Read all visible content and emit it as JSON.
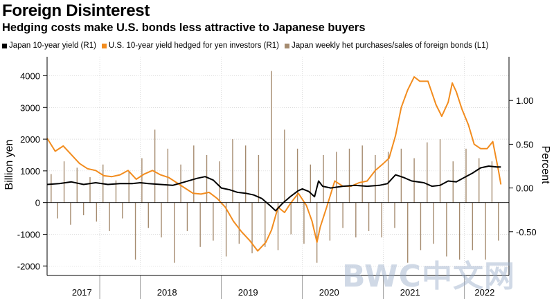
{
  "header": {
    "title": "Foreign Disinterest",
    "subtitle": "Hedging costs make U.S. bonds less attractive to Japanese buyers"
  },
  "watermark": "BWC中文网",
  "colors": {
    "japan_yield": "#000000",
    "us_hedged": "#f28c1e",
    "purchases": "#a58b6f",
    "grid": "#c8c8c8"
  },
  "chart_data": {
    "type": "line",
    "title": "Foreign Disinterest",
    "subtitle": "Hedging costs make U.S. bonds less attractive to Japanese buyers",
    "ylabel_left": "Billion yen",
    "ylabel_right": "Percent",
    "ylim_left": [
      -2300,
      4600
    ],
    "ylim_right": [
      -1.0,
      1.5
    ],
    "x_range": [
      2016.85,
      2022.55
    ],
    "yticks_left": [
      4000,
      3000,
      2000,
      1000,
      0,
      -1000,
      -2000
    ],
    "yticks_right": [
      1.0,
      0.5,
      0.0,
      -0.5
    ],
    "ytick_labels_left": [
      "4000",
      "3000",
      "2000",
      "1000",
      "0",
      "-1000",
      "-2000"
    ],
    "ytick_labels_right": [
      "1.00",
      "0.50",
      "0.00",
      "-0.50"
    ],
    "xticks": [
      {
        "label": "2017",
        "mid": 2017.28
      },
      {
        "label": "2018",
        "mid": 2018.33
      },
      {
        "label": "2019",
        "mid": 2019.33
      },
      {
        "label": "2020",
        "mid": 2020.33
      },
      {
        "label": "2021",
        "mid": 2021.33
      },
      {
        "label": "2022",
        "mid": 2022.25
      }
    ],
    "year_boundaries": [
      2017.5,
      2018.0,
      2019.0,
      2020.0,
      2021.0,
      2022.0
    ],
    "grid": true,
    "series": [
      {
        "name": "Japan 10-year yield (R1)",
        "axis": "right",
        "kind": "line",
        "x": [
          2016.85,
          2017.0,
          2017.15,
          2017.3,
          2017.45,
          2017.6,
          2017.75,
          2017.9,
          2018.0,
          2018.1,
          2018.25,
          2018.4,
          2018.55,
          2018.7,
          2018.8,
          2018.9,
          2019.0,
          2019.1,
          2019.2,
          2019.3,
          2019.4,
          2019.5,
          2019.6,
          2019.67,
          2019.75,
          2019.85,
          2019.95,
          2020.0,
          2020.08,
          2020.15,
          2020.2,
          2020.25,
          2020.35,
          2020.5,
          2020.65,
          2020.8,
          2020.95,
          2021.05,
          2021.15,
          2021.25,
          2021.35,
          2021.5,
          2021.6,
          2021.7,
          2021.8,
          2021.9,
          2022.0,
          2022.1,
          2022.2,
          2022.3,
          2022.4,
          2022.45
        ],
        "y": [
          0.04,
          0.05,
          0.07,
          0.04,
          0.06,
          0.04,
          0.05,
          0.05,
          0.06,
          0.05,
          0.04,
          0.03,
          0.07,
          0.11,
          0.13,
          0.09,
          0.0,
          -0.02,
          -0.05,
          -0.06,
          -0.08,
          -0.12,
          -0.2,
          -0.26,
          -0.18,
          -0.1,
          -0.03,
          -0.01,
          -0.04,
          -0.1,
          0.08,
          0.02,
          0.0,
          0.02,
          0.03,
          0.02,
          0.03,
          0.05,
          0.15,
          0.12,
          0.08,
          0.06,
          0.02,
          0.03,
          0.08,
          0.07,
          0.12,
          0.17,
          0.23,
          0.25,
          0.24,
          0.24
        ]
      },
      {
        "name": "U.S. 10-year yield hedged for yen investors (R1)",
        "axis": "right",
        "kind": "line",
        "x": [
          2016.85,
          2016.95,
          2017.05,
          2017.15,
          2017.25,
          2017.35,
          2017.45,
          2017.55,
          2017.65,
          2017.75,
          2017.85,
          2017.95,
          2018.05,
          2018.15,
          2018.25,
          2018.35,
          2018.45,
          2018.55,
          2018.65,
          2018.75,
          2018.85,
          2018.95,
          2019.05,
          2019.15,
          2019.25,
          2019.35,
          2019.45,
          2019.55,
          2019.62,
          2019.7,
          2019.78,
          2019.85,
          2019.95,
          2020.05,
          2020.12,
          2020.18,
          2020.22,
          2020.3,
          2020.4,
          2020.5,
          2020.6,
          2020.7,
          2020.8,
          2020.9,
          2021.0,
          2021.07,
          2021.15,
          2021.22,
          2021.3,
          2021.38,
          2021.45,
          2021.55,
          2021.65,
          2021.72,
          2021.8,
          2021.85,
          2021.9,
          2021.97,
          2022.05,
          2022.12,
          2022.2,
          2022.28,
          2022.35,
          2022.42,
          2022.45
        ],
        "y": [
          0.57,
          0.42,
          0.48,
          0.38,
          0.28,
          0.22,
          0.2,
          0.14,
          0.13,
          0.15,
          0.2,
          0.1,
          0.16,
          0.2,
          0.15,
          0.12,
          0.06,
          0.0,
          -0.06,
          -0.07,
          -0.05,
          -0.12,
          -0.22,
          -0.38,
          -0.5,
          -0.6,
          -0.72,
          -0.62,
          -0.48,
          -0.22,
          -0.28,
          -0.18,
          -0.06,
          -0.2,
          -0.38,
          -0.62,
          -0.45,
          -0.22,
          0.08,
          0.02,
          0.02,
          0.06,
          0.08,
          0.2,
          0.28,
          0.34,
          0.6,
          0.92,
          1.12,
          1.27,
          1.22,
          1.22,
          0.95,
          0.82,
          0.98,
          1.2,
          1.1,
          0.9,
          0.72,
          0.5,
          0.45,
          0.45,
          0.53,
          0.2,
          0.04
        ]
      },
      {
        "name": "Japan weekly het purchases/sales of foreign bonds (L1)",
        "axis": "left",
        "kind": "bar",
        "x": [
          2016.9,
          2016.98,
          2017.06,
          2017.14,
          2017.22,
          2017.3,
          2017.38,
          2017.46,
          2017.54,
          2017.62,
          2017.7,
          2017.78,
          2017.86,
          2017.94,
          2018.02,
          2018.1,
          2018.18,
          2018.26,
          2018.34,
          2018.42,
          2018.5,
          2018.58,
          2018.66,
          2018.74,
          2018.82,
          2018.9,
          2018.98,
          2019.06,
          2019.14,
          2019.22,
          2019.3,
          2019.38,
          2019.46,
          2019.54,
          2019.62,
          2019.7,
          2019.78,
          2019.86,
          2019.94,
          2020.02,
          2020.1,
          2020.18,
          2020.26,
          2020.34,
          2020.42,
          2020.5,
          2020.58,
          2020.66,
          2020.74,
          2020.82,
          2020.9,
          2020.98,
          2021.06,
          2021.14,
          2021.22,
          2021.3,
          2021.38,
          2021.46,
          2021.54,
          2021.62,
          2021.7,
          2021.78,
          2021.86,
          2021.94,
          2022.02,
          2022.1,
          2022.18,
          2022.26,
          2022.34,
          2022.42
        ],
        "y": [
          900,
          -500,
          1300,
          -700,
          1100,
          -400,
          800,
          -600,
          1200,
          -900,
          700,
          -500,
          1000,
          -1800,
          1400,
          -800,
          2300,
          -1100,
          1700,
          -1900,
          1200,
          -900,
          1800,
          -1400,
          1500,
          -1200,
          1300,
          -1700,
          2000,
          -1300,
          1800,
          -1600,
          1500,
          -1400,
          4150,
          -1500,
          2300,
          -1000,
          1700,
          -1300,
          1200,
          -1900,
          1500,
          -1200,
          1600,
          -800,
          1700,
          -1100,
          1800,
          -900,
          1500,
          -1100,
          1600,
          -800,
          1700,
          -1900,
          1400,
          -1500,
          1900,
          -1300,
          2000,
          -1700,
          1300,
          -1800,
          1700,
          -1500,
          1400,
          -1800,
          1300,
          -1200
        ]
      }
    ]
  }
}
